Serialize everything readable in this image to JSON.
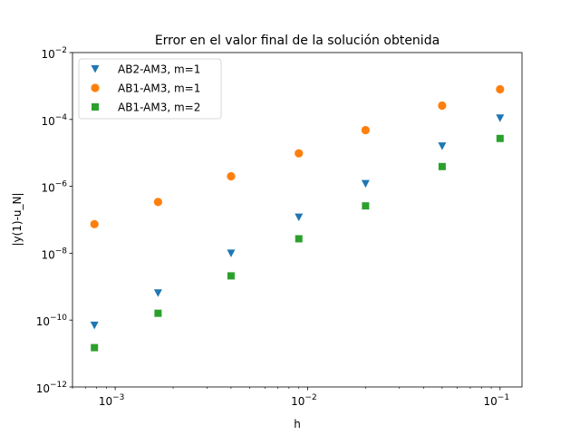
{
  "chart_data": {
    "type": "scatter",
    "title": "Error en el valor final de la solución obtenida",
    "xlabel": "h",
    "ylabel": "|y(1)-u_N|",
    "xscale": "log",
    "yscale": "log",
    "xlim": [
      0.0006,
      0.13
    ],
    "ylim": [
      1e-12,
      0.01
    ],
    "x_ticks": [
      {
        "value": 0.001,
        "base": "10",
        "exp": "−3"
      },
      {
        "value": 0.01,
        "base": "10",
        "exp": "−2"
      },
      {
        "value": 0.1,
        "base": "10",
        "exp": "−1"
      }
    ],
    "y_ticks": [
      {
        "value": 1e-12,
        "base": "10",
        "exp": "−12"
      },
      {
        "value": 1e-10,
        "base": "10",
        "exp": "−10"
      },
      {
        "value": 1e-08,
        "base": "10",
        "exp": "−8"
      },
      {
        "value": 1e-06,
        "base": "10",
        "exp": "−6"
      },
      {
        "value": 0.0001,
        "base": "10",
        "exp": "−4"
      },
      {
        "value": 0.01,
        "base": "10",
        "exp": "−2"
      }
    ],
    "x": [
      0.1,
      0.05,
      0.02,
      0.009,
      0.004,
      0.00167,
      0.00078
    ],
    "legend_position": "upper left",
    "series": [
      {
        "name": "AB2-AM3, m=1",
        "marker": "triangle-down",
        "color": "#1f77b4",
        "values": [
          0.00011,
          1.6e-05,
          1.2e-06,
          1.2e-07,
          1e-08,
          6.5e-10,
          7e-11
        ]
      },
      {
        "name": "AB1-AM3, m=1",
        "marker": "circle",
        "color": "#ff7f0e",
        "values": [
          0.0008,
          0.00026,
          4.8e-05,
          9.7e-06,
          2e-06,
          3.4e-07,
          7.4e-08
        ]
      },
      {
        "name": "AB1-AM3, m=2",
        "marker": "square",
        "color": "#2ca02c",
        "values": [
          2.7e-05,
          3.9e-06,
          2.6e-07,
          2.7e-08,
          2.1e-09,
          1.6e-10,
          1.5e-11
        ]
      }
    ]
  }
}
